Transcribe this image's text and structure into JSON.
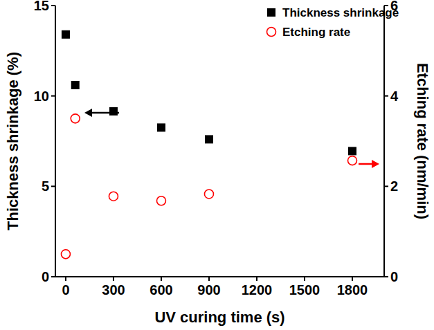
{
  "chart_data": {
    "type": "scatter",
    "x_label": "UV curing time (s)",
    "y_label": "Thickness shrinkage (%)",
    "y2_label": "Etching rate (nm/min)",
    "x": [
      0,
      60,
      300,
      600,
      900,
      1800
    ],
    "xlim": [
      -65,
      2000
    ],
    "xticks": [
      0,
      300,
      600,
      900,
      1200,
      1500,
      1800
    ],
    "ylim": [
      0,
      15
    ],
    "yticks": [
      0,
      5,
      10,
      15
    ],
    "y2lim": [
      0,
      6
    ],
    "y2ticks": [
      0,
      2,
      4,
      6
    ],
    "legend": "upper right",
    "grid": false,
    "series": [
      {
        "name": "Thickness shrinkage",
        "color": "#000000",
        "marker": "square",
        "values": [
          13.4,
          10.6,
          9.15,
          8.25,
          7.6,
          6.95
        ]
      },
      {
        "name": "Etching rate",
        "color": "#ff0000",
        "marker": "circle",
        "axis": "y2",
        "values": [
          0.5,
          3.5,
          1.78,
          1.68,
          1.83,
          2.57
        ]
      }
    ]
  }
}
